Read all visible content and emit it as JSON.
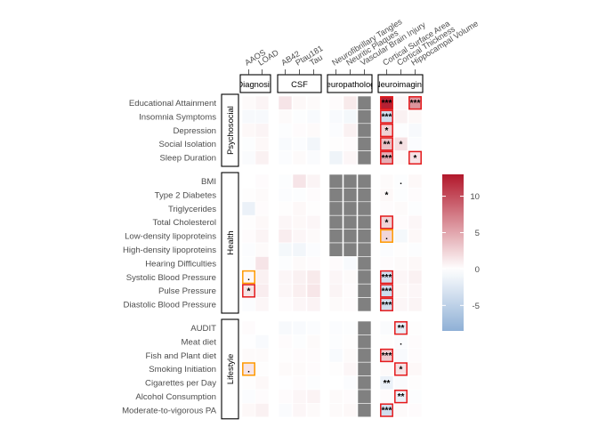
{
  "chart_data": {
    "type": "heatmap",
    "title": "",
    "rows": [
      "Educational Attainment",
      "Insomnia Symptoms",
      "Depression",
      "Social Isolation",
      "Sleep Duration",
      "BMI",
      "Type 2 Diabetes",
      "Triglycerides",
      "Total Cholesterol",
      "Low-density lipoproteins",
      "High-density lipoproteins",
      "Hearing Difficulties",
      "Systolic Blood Pressure",
      "Pulse Pressure",
      "Diastolic Blood Pressure",
      "AUDIT",
      "Meat diet",
      "Fish and Plant diet",
      "Smoking Initiation",
      "Cigarettes per Day",
      "Alcohol Consumption",
      "Moderate-to-vigorous PA"
    ],
    "row_groups": [
      {
        "label": "Psychosocial",
        "start": 0,
        "end": 4
      },
      {
        "label": "Health",
        "start": 5,
        "end": 14
      },
      {
        "label": "Lifestyle",
        "start": 15,
        "end": 21
      }
    ],
    "columns": [
      "AAOS",
      "LOAD",
      "AB42",
      "Ptau181",
      "Tau",
      "Neurofibrillary Tangles",
      "Neuritic Plaques",
      "Vascular Brain Injury",
      "Cortical Surface Area",
      "Cortical Thickness",
      "Hippocampal Volume"
    ],
    "column_groups": [
      {
        "label": "Diagnosis",
        "start": 0,
        "end": 1
      },
      {
        "label": "CSF",
        "start": 2,
        "end": 4
      },
      {
        "label": "Neuropathology",
        "start": 5,
        "end": 7
      },
      {
        "label": "Neuroimaging",
        "start": 8,
        "end": 10
      }
    ],
    "values": [
      [
        0.3,
        0.6,
        1.5,
        0.4,
        0.3,
        0.2,
        1.2,
        null,
        12.5,
        0.5,
        6
      ],
      [
        -0.6,
        -0.6,
        0.3,
        -0.2,
        -0.5,
        -0.5,
        -0.8,
        null,
        -3.5,
        0.8,
        0.4
      ],
      [
        0.4,
        0.6,
        -0.2,
        0.2,
        0.3,
        -0.3,
        0.8,
        null,
        2.6,
        -0.2,
        -0.6
      ],
      [
        -0.2,
        0.4,
        -0.5,
        -0.3,
        -1,
        0.1,
        0.2,
        null,
        3.5,
        1.7,
        -0.3
      ],
      [
        -0.4,
        0.8,
        -0.3,
        0.3,
        -0.4,
        -1.2,
        0.5,
        null,
        4.5,
        0.3,
        1.5
      ],
      [
        0,
        0.2,
        -0.2,
        1.5,
        0.6,
        null,
        null,
        null,
        0.3,
        -0.2,
        0.4
      ],
      [
        0.1,
        0.3,
        -0.3,
        -0.2,
        0.2,
        null,
        null,
        null,
        0.4,
        -0.2,
        0.2
      ],
      [
        -1.5,
        0.2,
        0.1,
        0.4,
        0.1,
        null,
        null,
        null,
        0.2,
        0.3,
        -0.2
      ],
      [
        0.1,
        0.4,
        0.5,
        0.4,
        0.5,
        null,
        null,
        null,
        2.5,
        0.2,
        0.5
      ],
      [
        0.2,
        0.6,
        1,
        0.5,
        0.3,
        null,
        null,
        null,
        2.3,
        -0.8,
        0.4
      ],
      [
        -0.3,
        0.3,
        -0.8,
        -1,
        -0.3,
        null,
        null,
        null,
        -0.3,
        0.1,
        -0.2
      ],
      [
        -0.2,
        1.5,
        -0.2,
        0.3,
        0.2,
        0.2,
        -0.5,
        null,
        0.2,
        0.3,
        0.4
      ],
      [
        0.4,
        0.8,
        0.5,
        0.8,
        1.2,
        0.5,
        0.3,
        null,
        -3.5,
        0.5,
        0.8
      ],
      [
        1.6,
        1,
        0.5,
        0.9,
        1.4,
        0.6,
        0.2,
        null,
        -3.8,
        0.4,
        0.5
      ],
      [
        -0.3,
        0.5,
        0.2,
        0.5,
        0.7,
        0.3,
        0.2,
        null,
        -3.5,
        0.5,
        0.6
      ],
      [
        0.2,
        0,
        -0.6,
        -0.5,
        -0.3,
        -0.3,
        -0.2,
        null,
        -0.4,
        -1.8,
        0.1
      ],
      [
        -0.1,
        -0.5,
        0.2,
        -0.2,
        0.3,
        -0.2,
        0.1,
        null,
        0.1,
        -0.3,
        0.2
      ],
      [
        0.3,
        0.3,
        0.1,
        0.2,
        0.2,
        -0.5,
        0.3,
        null,
        3,
        -0.5,
        0.2
      ],
      [
        1.5,
        0.1,
        0.3,
        0.3,
        0.2,
        0.1,
        0.5,
        null,
        0.3,
        1.6,
        0.4
      ],
      [
        0.1,
        0.4,
        -0.1,
        0.2,
        -0.2,
        0,
        -0.3,
        null,
        -1.5,
        -0.4,
        0.1
      ],
      [
        -0.3,
        0.2,
        0.2,
        0.5,
        0.7,
        0.3,
        0.2,
        null,
        0.2,
        -1.5,
        -0.2
      ],
      [
        0.4,
        0.8,
        -0.4,
        0.5,
        0.3,
        0.3,
        0.4,
        null,
        -3.5,
        0.3,
        0.2
      ]
    ],
    "significance": [
      {
        "row": 0,
        "col": 8,
        "label": "***",
        "box": "red"
      },
      {
        "row": 0,
        "col": 10,
        "label": "***",
        "box": "red"
      },
      {
        "row": 1,
        "col": 8,
        "label": "***",
        "box": "red"
      },
      {
        "row": 2,
        "col": 8,
        "label": "*",
        "box": "red"
      },
      {
        "row": 3,
        "col": 8,
        "label": "**",
        "box": "red"
      },
      {
        "row": 3,
        "col": 9,
        "label": "*",
        "box": "none"
      },
      {
        "row": 4,
        "col": 8,
        "label": "***",
        "box": "red"
      },
      {
        "row": 4,
        "col": 10,
        "label": "*",
        "box": "red"
      },
      {
        "row": 5,
        "col": 9,
        "label": ".",
        "box": "none"
      },
      {
        "row": 6,
        "col": 8,
        "label": "*",
        "box": "none"
      },
      {
        "row": 8,
        "col": 8,
        "label": "*",
        "box": "red"
      },
      {
        "row": 9,
        "col": 8,
        "label": ".",
        "box": "orange"
      },
      {
        "row": 12,
        "col": 0,
        "label": ".",
        "box": "orange"
      },
      {
        "row": 12,
        "col": 8,
        "label": "***",
        "box": "red"
      },
      {
        "row": 13,
        "col": 0,
        "label": "*",
        "box": "red"
      },
      {
        "row": 13,
        "col": 8,
        "label": "***",
        "box": "red"
      },
      {
        "row": 14,
        "col": 8,
        "label": "***",
        "box": "red"
      },
      {
        "row": 15,
        "col": 9,
        "label": "**",
        "box": "red"
      },
      {
        "row": 16,
        "col": 9,
        "label": ".",
        "box": "none"
      },
      {
        "row": 17,
        "col": 8,
        "label": "***",
        "box": "red"
      },
      {
        "row": 18,
        "col": 0,
        "label": ".",
        "box": "orange"
      },
      {
        "row": 18,
        "col": 9,
        "label": "*",
        "box": "red"
      },
      {
        "row": 19,
        "col": 8,
        "label": "**",
        "box": "none"
      },
      {
        "row": 20,
        "col": 9,
        "label": "**",
        "box": "red"
      },
      {
        "row": 21,
        "col": 8,
        "label": "***",
        "box": "red"
      }
    ],
    "colorbar": {
      "min": -8.5,
      "max": 13,
      "ticks": [
        10,
        5,
        0,
        -5
      ],
      "low_color": "#8fb0d6",
      "mid_color": "#ffffff",
      "high_color": "#b2182b"
    },
    "na_color": "#808080",
    "sig_box_colors": {
      "red": "#e41a1c",
      "orange": "#ff9900"
    }
  }
}
